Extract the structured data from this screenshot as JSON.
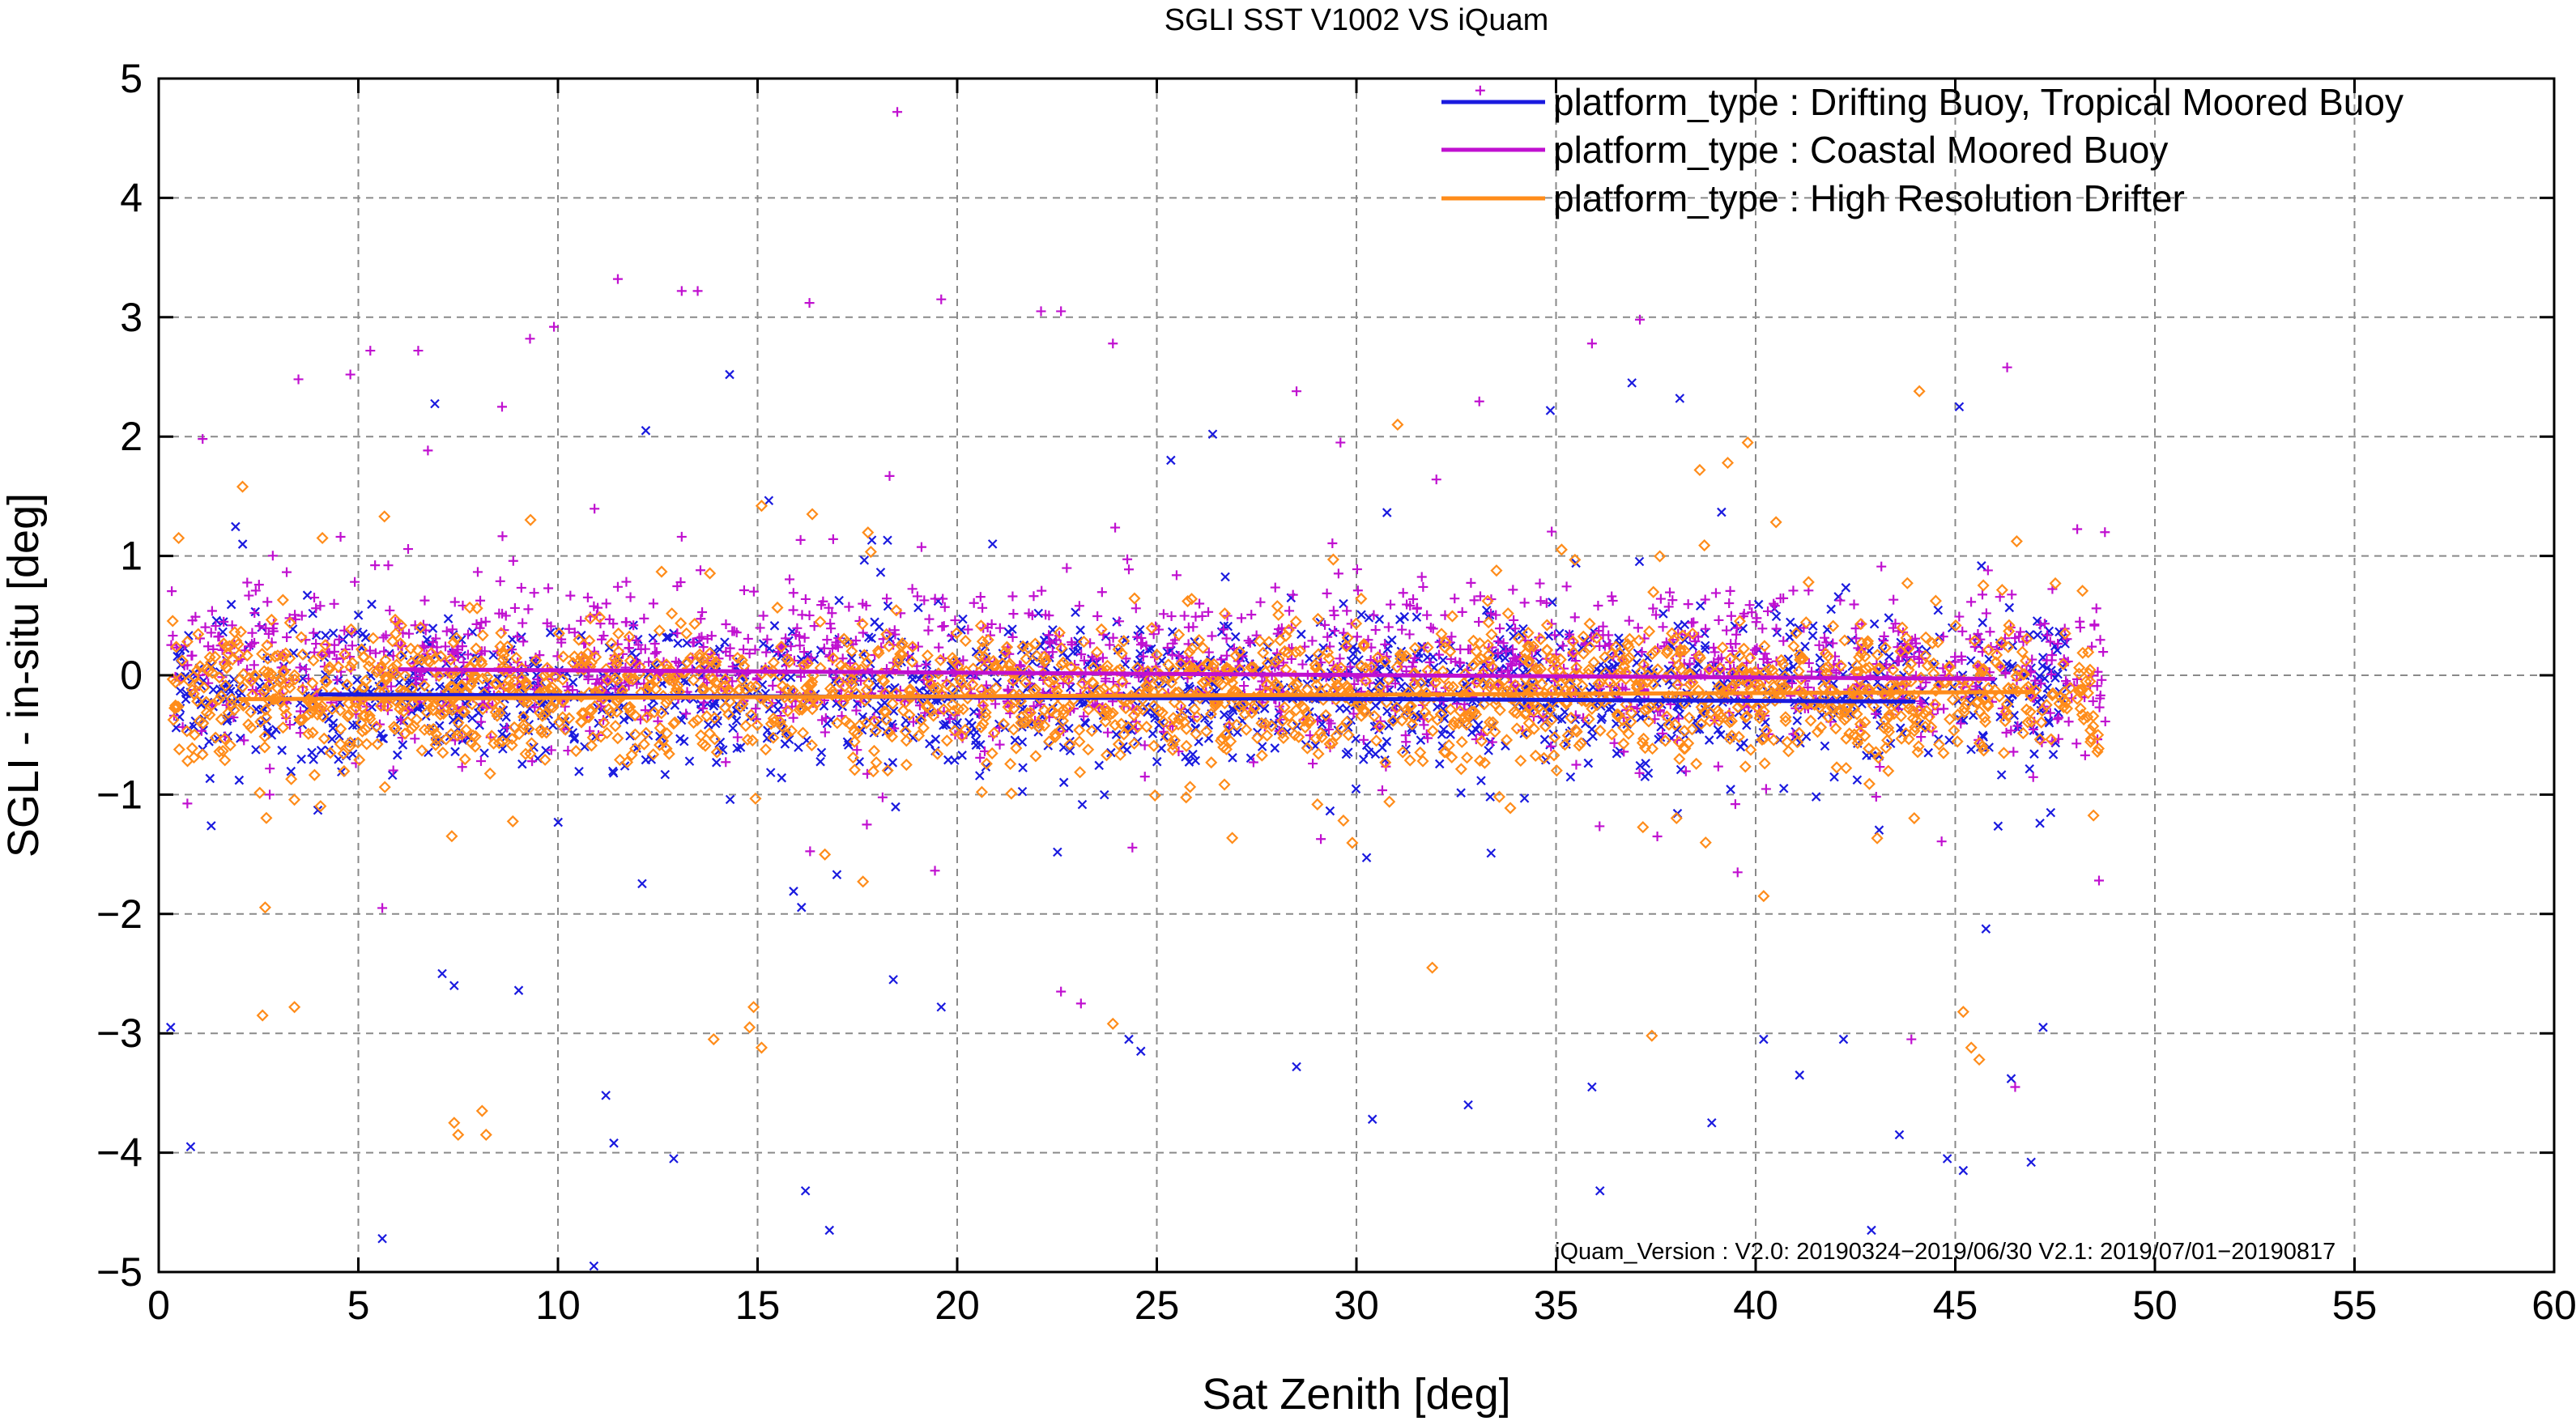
{
  "chart_data": {
    "type": "scatter",
    "title": "SGLI SST V1002 VS iQuam",
    "xlabel": "Sat Zenith [deg]",
    "ylabel": "SGLI - in-situ [deg]",
    "xlim": [
      0,
      60
    ],
    "ylim": [
      -5,
      5
    ],
    "x_ticks": [
      0,
      5,
      10,
      15,
      20,
      25,
      30,
      35,
      40,
      45,
      50,
      55,
      60
    ],
    "y_ticks": [
      -5,
      -4,
      -3,
      -2,
      -1,
      0,
      1,
      2,
      3,
      4,
      5
    ],
    "x_tick_labels": [
      "0",
      "5",
      "10",
      "15",
      "20",
      "25",
      "30",
      "35",
      "40",
      "45",
      "50",
      "55",
      "60"
    ],
    "y_tick_labels": [
      "−5",
      "−4",
      "−3",
      "−2",
      "−1",
      "0",
      "1",
      "2",
      "3",
      "4",
      "5"
    ],
    "grid": true,
    "legend_position": "top-right",
    "series": [
      {
        "name": "platform_type : Drifting Buoy, Tropical Moored Buoy",
        "color": "#1a1adf",
        "marker": "x",
        "x_range": [
          0.3,
          47.8
        ],
        "typical_spread": [
          -1.0,
          0.7
        ],
        "trend": [
          [
            4,
            -0.16
          ],
          [
            44,
            -0.22
          ]
        ],
        "outliers": [
          [
            0.3,
            -2.95
          ],
          [
            0.8,
            -3.95
          ],
          [
            5.6,
            -4.72
          ],
          [
            7.1,
            -2.5
          ],
          [
            7.4,
            -2.6
          ],
          [
            10.9,
            -4.95
          ],
          [
            11.2,
            -3.52
          ],
          [
            11.4,
            -3.92
          ],
          [
            12.9,
            -4.05
          ],
          [
            16.2,
            -4.32
          ],
          [
            16.8,
            -4.65
          ],
          [
            18.4,
            -2.55
          ],
          [
            19.6,
            -2.78
          ],
          [
            24.3,
            -3.05
          ],
          [
            24.6,
            -3.15
          ],
          [
            28.5,
            -3.28
          ],
          [
            30.4,
            -3.72
          ],
          [
            32.8,
            -3.6
          ],
          [
            35.9,
            -3.45
          ],
          [
            36.1,
            -4.32
          ],
          [
            38.9,
            -3.75
          ],
          [
            40.2,
            -3.05
          ],
          [
            41.1,
            -3.35
          ],
          [
            42.2,
            -3.05
          ],
          [
            42.9,
            -4.65
          ],
          [
            43.6,
            -3.85
          ],
          [
            44.8,
            -4.05
          ],
          [
            45.2,
            -4.15
          ],
          [
            46.4,
            -3.38
          ],
          [
            46.9,
            -4.08
          ],
          [
            47.2,
            -2.95
          ],
          [
            14.3,
            2.52
          ],
          [
            12.2,
            2.05
          ],
          [
            26.4,
            2.02
          ],
          [
            36.9,
            2.45
          ],
          [
            38.1,
            2.32
          ],
          [
            45.1,
            2.25
          ]
        ]
      },
      {
        "name": "platform_type : Coastal Moored Buoy",
        "color": "#c010d0",
        "marker": "+",
        "x_range": [
          0.3,
          48.8
        ],
        "typical_spread": [
          -0.8,
          1.0
        ],
        "trend": [
          [
            6,
            0.05
          ],
          [
            46,
            -0.03
          ]
        ],
        "outliers": [
          [
            18.5,
            4.72
          ],
          [
            33.1,
            4.9
          ],
          [
            11.5,
            3.32
          ],
          [
            13.1,
            3.22
          ],
          [
            13.5,
            3.22
          ],
          [
            16.3,
            3.12
          ],
          [
            19.6,
            3.15
          ],
          [
            22.1,
            3.05
          ],
          [
            22.6,
            3.05
          ],
          [
            23.9,
            2.78
          ],
          [
            9.3,
            2.82
          ],
          [
            9.9,
            2.92
          ],
          [
            5.3,
            2.72
          ],
          [
            6.5,
            2.72
          ],
          [
            37.1,
            2.98
          ],
          [
            35.9,
            2.78
          ],
          [
            46.3,
            2.58
          ],
          [
            4.8,
            2.52
          ],
          [
            3.5,
            2.48
          ],
          [
            1.1,
            1.98
          ],
          [
            8.6,
            2.25
          ],
          [
            28.5,
            2.38
          ],
          [
            29.6,
            1.95
          ],
          [
            5.6,
            -1.95
          ],
          [
            46.5,
            -3.45
          ],
          [
            43.9,
            -3.05
          ],
          [
            23.1,
            -2.75
          ],
          [
            22.6,
            -2.65
          ],
          [
            48.6,
            -1.72
          ]
        ]
      },
      {
        "name": "platform_type : High Resolution Drifter",
        "color": "#ff8c1a",
        "marker": "diamond",
        "x_range": [
          0.3,
          48.6
        ],
        "typical_spread": [
          -0.9,
          0.6
        ],
        "trend": [
          [
            2,
            -0.2
          ],
          [
            47,
            -0.14
          ]
        ],
        "outliers": [
          [
            2.6,
            -2.85
          ],
          [
            3.4,
            -2.78
          ],
          [
            7.4,
            -3.75
          ],
          [
            7.5,
            -3.85
          ],
          [
            8.1,
            -3.65
          ],
          [
            8.2,
            -3.85
          ],
          [
            13.9,
            -3.05
          ],
          [
            14.8,
            -2.95
          ],
          [
            15.1,
            -3.12
          ],
          [
            14.9,
            -2.78
          ],
          [
            23.9,
            -2.92
          ],
          [
            31.9,
            -2.45
          ],
          [
            37.4,
            -3.02
          ],
          [
            45.4,
            -3.12
          ],
          [
            45.6,
            -3.22
          ],
          [
            45.2,
            -2.82
          ],
          [
            40.2,
            -1.85
          ],
          [
            44.1,
            2.38
          ],
          [
            39.3,
            1.78
          ],
          [
            39.8,
            1.95
          ],
          [
            38.6,
            1.72
          ],
          [
            15.1,
            1.42
          ],
          [
            0.5,
            1.15
          ],
          [
            4.1,
            1.15
          ],
          [
            2.1,
            1.58
          ]
        ]
      }
    ],
    "annotation": "iQuam_Version :  V2.0: 20190324−2019/06/30 V2.1: 2019/07/01−20190817"
  }
}
